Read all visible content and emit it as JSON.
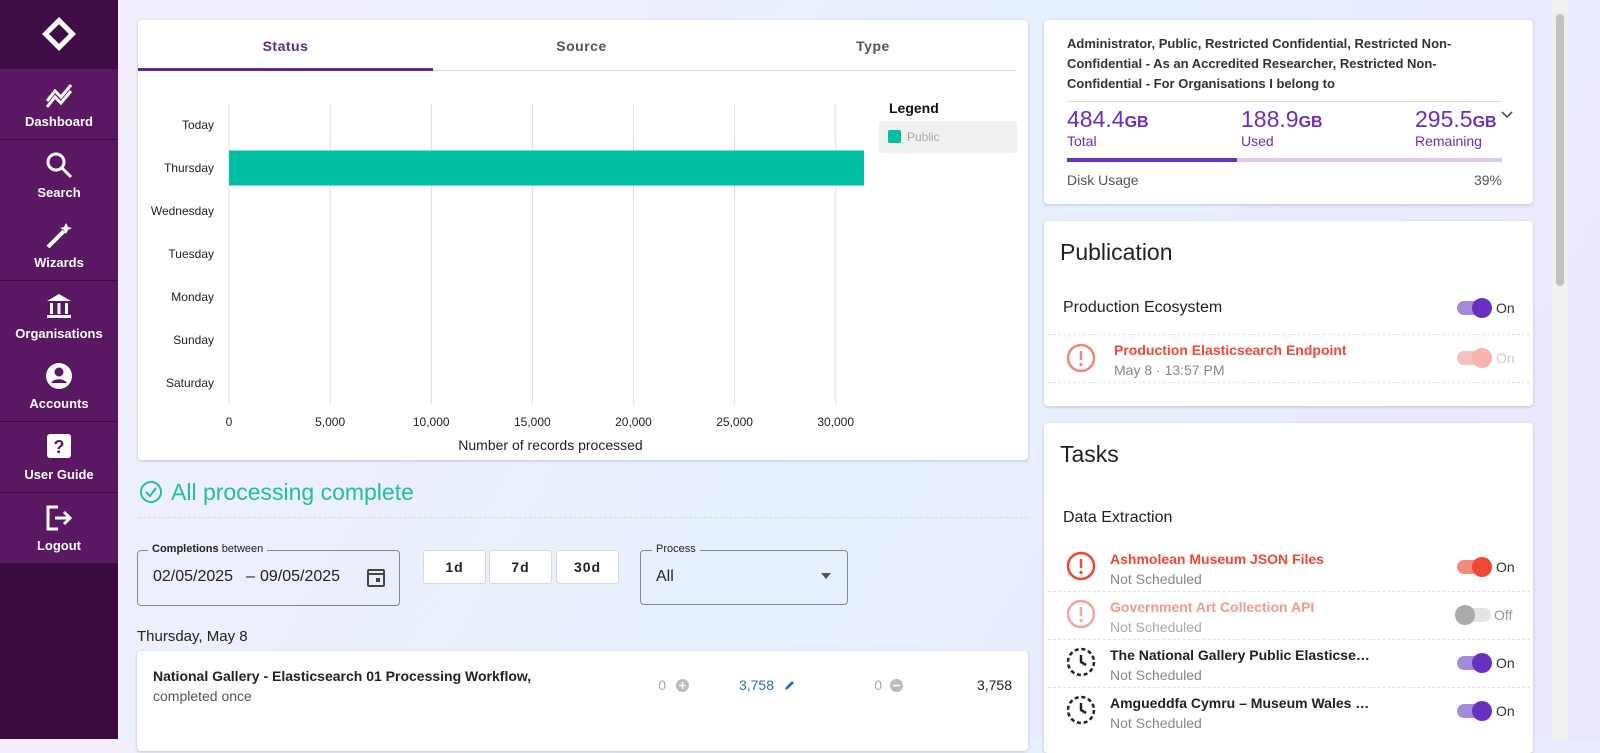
{
  "sidebar": {
    "nav": [
      "Dashboard",
      "Search",
      "Wizards",
      "Organisations",
      "Accounts",
      "User Guide",
      "Logout"
    ]
  },
  "status_tabs": [
    "Status",
    "Source",
    "Type"
  ],
  "chart_data": {
    "type": "bar",
    "orientation": "horizontal",
    "categories": [
      "Today",
      "Thursday",
      "Wednesday",
      "Tuesday",
      "Monday",
      "Sunday",
      "Saturday"
    ],
    "series": [
      {
        "name": "Public",
        "color": "#00bfa5",
        "values": [
          0,
          31400,
          0,
          0,
          0,
          0,
          0
        ]
      }
    ],
    "xlabel": "Number of records processed",
    "xlim": [
      0,
      31400
    ],
    "xticks": [
      0,
      {
        "value": 5000,
        "label": "5,000"
      },
      {
        "value": 10000,
        "label": "10,000"
      },
      {
        "value": 15000,
        "label": "15,000"
      },
      {
        "value": 20000,
        "label": "20,000"
      },
      {
        "value": 25000,
        "label": "25,000"
      },
      {
        "value": 30000,
        "label": "30,000"
      }
    ],
    "grid": true,
    "legend_title": "Legend",
    "legend_position": "right"
  },
  "usage": {
    "roles": "Administrator, Public, Restricted Confidential, Restricted Non-Confidential - As an Accredited Researcher, Restricted Non-Confidential - For Organisations I belong to",
    "total": {
      "value": "484.4",
      "unit": "GB",
      "label": "Total"
    },
    "used": {
      "value": "188.9",
      "unit": "GB",
      "label": "Used"
    },
    "remaining": {
      "value": "295.5",
      "unit": "GB",
      "label": "Remaining"
    },
    "disk_usage_label": "Disk Usage",
    "disk_usage": {
      "value": 39,
      "label": "39%"
    }
  },
  "publication": {
    "title": "Publication",
    "items": [
      {
        "name": "Production Ecosystem",
        "state": "On"
      },
      {
        "name": "Production Elasticsearch Endpoint",
        "meta": "May 8 · 13:57 PM",
        "state": "On"
      }
    ]
  },
  "tasks": {
    "title": "Tasks",
    "group": "Data Extraction",
    "items": [
      {
        "name": "Ashmolean Museum JSON Files",
        "schedule": "Not Scheduled",
        "state": "On"
      },
      {
        "name": "Government Art Collection API",
        "schedule": "Not Scheduled",
        "state": "Off"
      },
      {
        "name": "The National Gallery Public Elasticse…",
        "schedule": "Not Scheduled",
        "state": "On"
      },
      {
        "name": "Amgueddfa Cymru – Museum Wales …",
        "schedule": "Not Scheduled",
        "state": "On"
      }
    ]
  },
  "processing": {
    "heading": "All processing complete",
    "filter": {
      "label": "Completions",
      "label_suffix": "between",
      "from": "02/05/2025",
      "separator": "–",
      "to": "09/05/2025"
    },
    "ranges": [
      "1d",
      "7d",
      "30d"
    ],
    "process": {
      "label": "Process",
      "value": "All"
    },
    "day": "Thursday, May 8",
    "rows": [
      {
        "name": "National Gallery - Elasticsearch 01 Processing Workflow,",
        "status": "completed once",
        "counts": [
          "0",
          "3,758",
          "0",
          "3,758"
        ]
      }
    ]
  }
}
